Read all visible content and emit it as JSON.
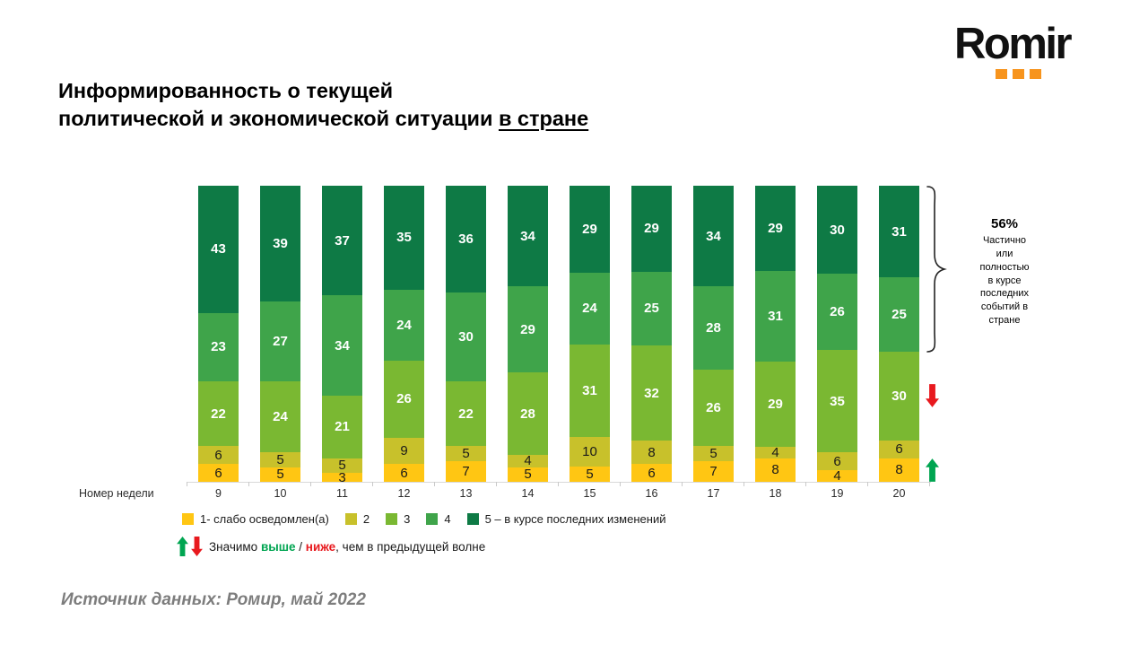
{
  "logo": {
    "text": "Romir",
    "dot_color": "#F7941D"
  },
  "title": {
    "line1": "Информированность о текущей",
    "line2_part1": "политической и экономической ситуации",
    "line2_underlined": "в стране"
  },
  "chart_data": {
    "type": "bar",
    "stacked": true,
    "unit": "percent",
    "x_axis_label": "Номер недели",
    "categories": [
      "9",
      "10",
      "11",
      "12",
      "13",
      "14",
      "15",
      "16",
      "17",
      "18",
      "19",
      "20"
    ],
    "series": [
      {
        "name": "1- слабо осведомлен(а)",
        "color": "#FFC613",
        "label_color": "#1a1a1a",
        "label_bold": false,
        "values": [
          6,
          5,
          3,
          6,
          7,
          5,
          5,
          6,
          7,
          8,
          4,
          8
        ]
      },
      {
        "name": "2",
        "color": "#C8C12B",
        "label_color": "#1a1a1a",
        "label_bold": false,
        "values": [
          6,
          5,
          5,
          9,
          5,
          4,
          10,
          8,
          5,
          4,
          6,
          6
        ]
      },
      {
        "name": "3",
        "color": "#7AB832",
        "label_color": "#ffffff",
        "label_bold": true,
        "values": [
          22,
          24,
          21,
          26,
          22,
          28,
          31,
          32,
          26,
          29,
          35,
          30
        ]
      },
      {
        "name": "4",
        "color": "#3FA44A",
        "label_color": "#ffffff",
        "label_bold": true,
        "values": [
          23,
          27,
          34,
          24,
          30,
          29,
          24,
          25,
          28,
          31,
          26,
          25
        ]
      },
      {
        "name": "5 – в курсе последних изменений",
        "color": "#0E7A45",
        "label_color": "#ffffff",
        "label_bold": true,
        "values": [
          43,
          39,
          37,
          35,
          36,
          34,
          29,
          29,
          34,
          29,
          30,
          31
        ]
      }
    ],
    "ylim": [
      0,
      100
    ],
    "legend_position": "bottom",
    "markers": [
      {
        "category": "20",
        "series_index": 2,
        "direction": "down"
      },
      {
        "category": "20",
        "series_index": 0,
        "direction": "up"
      }
    ]
  },
  "annotation": {
    "value": "56%",
    "lines": [
      "Частично",
      "или",
      "полностью",
      "в курсе",
      "последних",
      "событий в",
      "стране"
    ]
  },
  "significance_note": {
    "prefix": "Значимо ",
    "higher": "выше",
    "separator": " / ",
    "lower": "ниже",
    "suffix": ", чем в  предыдущей волне"
  },
  "source": "Источник данных: Ромир, май 2022",
  "colors": {
    "arrow_up": "#00A551",
    "arrow_down": "#E8191E"
  }
}
